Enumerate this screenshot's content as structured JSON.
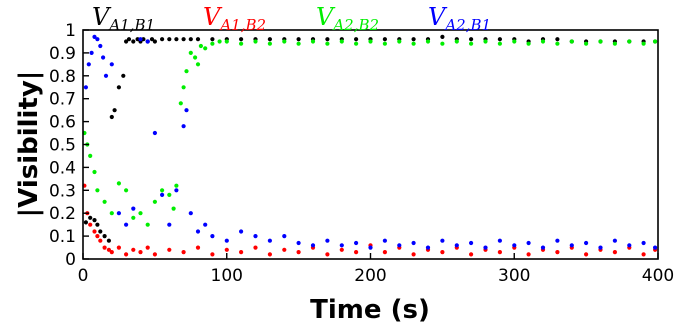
{
  "chart_data": {
    "type": "scatter",
    "title": "",
    "xlabel": "Time (s)",
    "ylabel": "|Visibility|",
    "xlim": [
      0,
      400
    ],
    "ylim": [
      0,
      1
    ],
    "x_ticks": [
      0,
      100,
      200,
      300,
      400
    ],
    "x_tick_labels": [
      "0",
      "100",
      "200",
      "300",
      "400"
    ],
    "y_ticks": [
      0,
      0.1,
      0.2,
      0.3,
      0.4,
      0.5,
      0.6,
      0.7,
      0.8,
      0.9,
      1
    ],
    "y_tick_labels": [
      "0",
      "0.1",
      "0.2",
      "0.3",
      "0.4",
      "0.5",
      "0.6",
      "0.7",
      "0.8",
      "0.9",
      "1"
    ],
    "grid": false,
    "legend_placement": "top",
    "series": [
      {
        "legend_main": "V",
        "legend_sub": "A1,B1",
        "color": "#000000",
        "x": [
          2,
          5,
          8,
          10,
          12,
          15,
          18,
          20,
          22,
          25,
          28,
          30,
          32,
          35,
          38,
          40,
          42,
          45,
          48,
          50,
          55,
          60,
          65,
          70,
          75,
          80,
          90,
          100,
          110,
          120,
          130,
          140,
          150,
          160,
          170,
          180,
          190,
          200,
          210,
          220,
          230,
          240,
          250,
          260,
          270,
          280,
          290,
          300,
          310,
          320,
          330,
          340,
          350,
          360,
          370,
          380,
          390,
          398
        ],
        "y": [
          0.16,
          0.18,
          0.17,
          0.15,
          0.12,
          0.1,
          0.08,
          0.62,
          0.65,
          0.75,
          0.8,
          0.95,
          0.96,
          0.95,
          0.96,
          0.95,
          0.96,
          0.95,
          0.96,
          0.95,
          0.96,
          0.96,
          0.96,
          0.96,
          0.96,
          0.96,
          0.96,
          0.96,
          0.96,
          0.96,
          0.96,
          0.96,
          0.96,
          0.96,
          0.96,
          0.96,
          0.96,
          0.96,
          0.96,
          0.96,
          0.96,
          0.96,
          0.97,
          0.96,
          0.96,
          0.96,
          0.96,
          0.96,
          0.95,
          0.96,
          0.96,
          0.95,
          0.95,
          0.95,
          0.95,
          0.95,
          0.95,
          0.95
        ]
      },
      {
        "legend_main": "V",
        "legend_sub": "A1,B2",
        "color": "#ff0000",
        "x": [
          1,
          3,
          5,
          8,
          10,
          12,
          15,
          18,
          20,
          25,
          30,
          35,
          40,
          45,
          50,
          60,
          70,
          80,
          90,
          100,
          110,
          120,
          130,
          140,
          150,
          160,
          170,
          180,
          190,
          200,
          210,
          220,
          230,
          240,
          250,
          260,
          270,
          280,
          290,
          300,
          310,
          320,
          330,
          340,
          350,
          360,
          370,
          380,
          390,
          398
        ],
        "y": [
          0.32,
          0.2,
          0.15,
          0.12,
          0.1,
          0.08,
          0.05,
          0.04,
          0.03,
          0.05,
          0.02,
          0.04,
          0.03,
          0.05,
          0.02,
          0.04,
          0.03,
          0.05,
          0.02,
          0.04,
          0.03,
          0.05,
          0.02,
          0.04,
          0.03,
          0.05,
          0.02,
          0.04,
          0.03,
          0.06,
          0.03,
          0.05,
          0.02,
          0.04,
          0.03,
          0.05,
          0.02,
          0.04,
          0.03,
          0.05,
          0.02,
          0.04,
          0.03,
          0.05,
          0.02,
          0.04,
          0.03,
          0.05,
          0.02,
          0.04
        ]
      },
      {
        "legend_main": "V",
        "legend_sub": "A2,B2",
        "color": "#00ee00",
        "x": [
          1,
          3,
          5,
          8,
          10,
          15,
          20,
          25,
          30,
          35,
          40,
          45,
          50,
          55,
          60,
          63,
          65,
          68,
          70,
          72,
          75,
          78,
          80,
          82,
          85,
          90,
          95,
          100,
          110,
          120,
          130,
          140,
          150,
          160,
          170,
          180,
          190,
          200,
          210,
          220,
          230,
          240,
          250,
          260,
          270,
          280,
          290,
          300,
          310,
          320,
          330,
          340,
          350,
          360,
          370,
          380,
          390,
          398
        ],
        "y": [
          0.55,
          0.5,
          0.45,
          0.38,
          0.3,
          0.25,
          0.2,
          0.33,
          0.3,
          0.18,
          0.2,
          0.15,
          0.25,
          0.3,
          0.28,
          0.22,
          0.32,
          0.68,
          0.75,
          0.82,
          0.9,
          0.88,
          0.85,
          0.93,
          0.92,
          0.94,
          0.95,
          0.95,
          0.94,
          0.95,
          0.94,
          0.95,
          0.94,
          0.95,
          0.94,
          0.95,
          0.94,
          0.95,
          0.94,
          0.95,
          0.94,
          0.95,
          0.94,
          0.95,
          0.94,
          0.95,
          0.94,
          0.95,
          0.94,
          0.95,
          0.94,
          0.95,
          0.94,
          0.95,
          0.94,
          0.95,
          0.94,
          0.95
        ]
      },
      {
        "legend_main": "V",
        "legend_sub": "A2,B1",
        "color": "#0000ff",
        "x": [
          2,
          4,
          6,
          8,
          10,
          12,
          14,
          16,
          20,
          25,
          30,
          35,
          40,
          45,
          50,
          55,
          60,
          65,
          70,
          72,
          75,
          80,
          85,
          90,
          100,
          110,
          120,
          130,
          140,
          150,
          160,
          170,
          180,
          190,
          200,
          210,
          220,
          230,
          240,
          250,
          260,
          270,
          280,
          290,
          300,
          310,
          320,
          330,
          340,
          350,
          360,
          370,
          380,
          390,
          398
        ],
        "y": [
          0.75,
          0.85,
          0.9,
          0.97,
          0.96,
          0.93,
          0.88,
          0.8,
          0.85,
          0.2,
          0.15,
          0.22,
          0.96,
          0.95,
          0.55,
          0.28,
          0.15,
          0.3,
          0.58,
          0.65,
          0.2,
          0.12,
          0.15,
          0.1,
          0.08,
          0.12,
          0.1,
          0.08,
          0.1,
          0.07,
          0.06,
          0.08,
          0.06,
          0.07,
          0.05,
          0.08,
          0.06,
          0.07,
          0.05,
          0.08,
          0.06,
          0.07,
          0.05,
          0.08,
          0.06,
          0.07,
          0.05,
          0.08,
          0.06,
          0.07,
          0.05,
          0.08,
          0.06,
          0.07,
          0.05
        ]
      }
    ]
  }
}
